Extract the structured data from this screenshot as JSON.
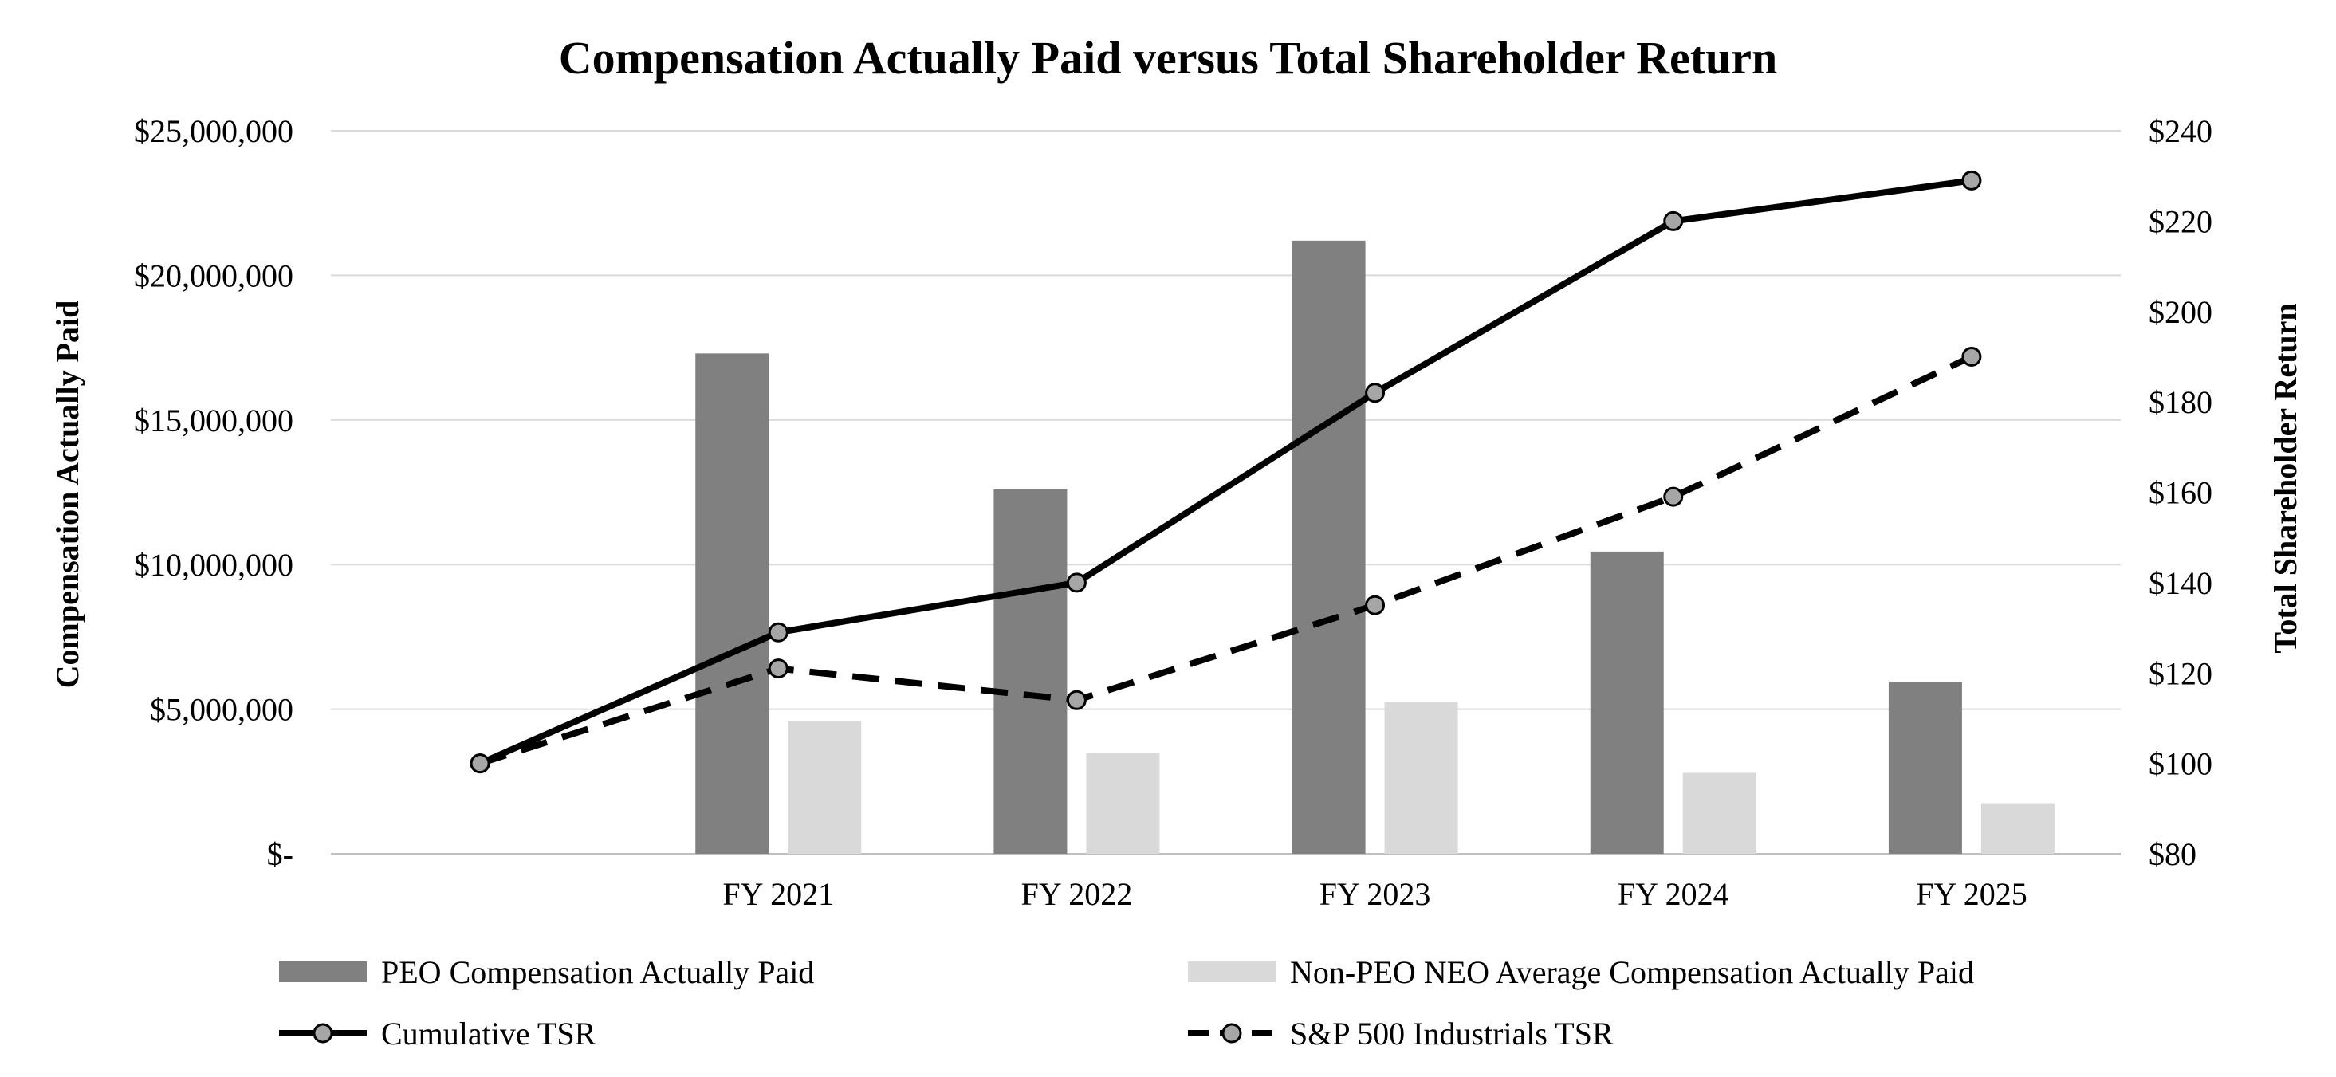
{
  "chart_data": {
    "type": "bar+line",
    "title": "Compensation Actually Paid versus Total Shareholder Return",
    "left_axis": {
      "label": "Compensation Actually Paid",
      "range": [
        0,
        25000000
      ],
      "ticks": [
        0,
        5000000,
        10000000,
        15000000,
        20000000,
        25000000
      ],
      "tick_labels": [
        "$-",
        "$5,000,000",
        "$10,000,000",
        "$15,000,000",
        "$20,000,000",
        "$25,000,000"
      ]
    },
    "right_axis": {
      "label": "Total Shareholder Return",
      "range": [
        80,
        240
      ],
      "ticks": [
        80,
        100,
        120,
        140,
        160,
        180,
        200,
        220,
        240
      ],
      "tick_labels": [
        "$80",
        "$100",
        "$120",
        "$140",
        "$160",
        "$180",
        "$200",
        "$220",
        "$240"
      ]
    },
    "x_points": [
      "",
      "FY 2021",
      "FY 2022",
      "FY 2023",
      "FY 2024",
      "FY 2025"
    ],
    "categories": [
      "FY 2021",
      "FY 2022",
      "FY 2023",
      "FY 2024",
      "FY 2025"
    ],
    "bar_series": [
      {
        "name": "PEO Compensation Actually Paid",
        "color": "#808080",
        "values": [
          17300000,
          12600000,
          21200000,
          10450000,
          5950000
        ]
      },
      {
        "name": "Non-PEO NEO Average Compensation Actually Paid",
        "color": "#d9d9d9",
        "values": [
          4600000,
          3500000,
          5250000,
          2800000,
          1750000
        ]
      }
    ],
    "line_series": [
      {
        "name": "Cumulative TSR",
        "style": "solid",
        "color": "#000000",
        "values": [
          100,
          129,
          140,
          182,
          220,
          229
        ]
      },
      {
        "name": "S&P 500 Industrials TSR",
        "style": "dashed",
        "color": "#000000",
        "values": [
          100,
          121,
          114,
          135,
          159,
          190
        ]
      }
    ],
    "gridlines": true,
    "legend_position": "bottom"
  }
}
